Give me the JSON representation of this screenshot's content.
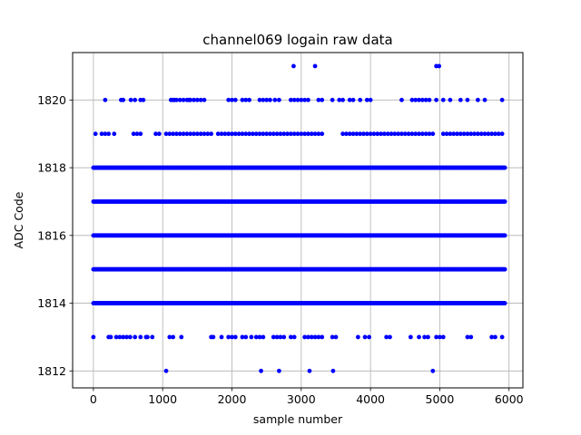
{
  "chart_data": {
    "type": "scatter",
    "title": "channel069 logain raw data",
    "xlabel": "sample number",
    "ylabel": "ADC Code",
    "xlim": [
      -300,
      6200
    ],
    "ylim": [
      1811.5,
      1821.4
    ],
    "xticks": [
      0,
      1000,
      2000,
      3000,
      4000,
      5000,
      6000
    ],
    "xtick_labels": [
      "0",
      "1000",
      "2000",
      "3000",
      "4000",
      "5000",
      "6000"
    ],
    "yticks": [
      1812,
      1814,
      1816,
      1818,
      1820
    ],
    "ytick_labels": [
      "1812",
      "1814",
      "1816",
      "1818",
      "1820"
    ],
    "grid": true,
    "marker_color": "#0000ff",
    "x_range": [
      0,
      5950
    ],
    "series": [
      {
        "values_dense": [
          1814,
          1815,
          1816,
          1817,
          1818
        ],
        "sparse_points": [
          {
            "y": 1812,
            "x": [
              1050,
              2420,
              2680,
              3120,
              3460,
              4900
            ]
          },
          {
            "y": 1821,
            "x": [
              2890,
              3200,
              4950,
              4990
            ]
          },
          {
            "y": 1820,
            "x": [
              170,
              400,
              430,
              540,
              600,
              680,
              720,
              1120,
              1150,
              1170,
              1200,
              1250,
              1300,
              1350,
              1380,
              1400,
              1450,
              1500,
              1550,
              1600,
              1950,
              2000,
              2050,
              2150,
              2200,
              2250,
              2400,
              2450,
              2500,
              2550,
              2620,
              2680,
              2850,
              2900,
              2950,
              3000,
              3050,
              3100,
              3250,
              3300,
              3450,
              3550,
              3600,
              3700,
              3750,
              3850,
              3950,
              4000,
              4450,
              4600,
              4650,
              4700,
              4750,
              4800,
              4850,
              4950,
              5050,
              5150,
              5300,
              5400,
              5550,
              5650,
              5900
            ]
          },
          {
            "y": 1819,
            "x": [
              30,
              120,
              170,
              220,
              300,
              580,
              630,
              680,
              900,
              950,
              1050,
              1100,
              1150,
              1200,
              1250,
              1300,
              1350,
              1400,
              1450,
              1500,
              1550,
              1600,
              1650,
              1700,
              1800,
              1850,
              1900,
              1950,
              2000,
              2050,
              2100,
              2150,
              2200,
              2250,
              2300,
              2350,
              2400,
              2450,
              2500,
              2550,
              2600,
              2650,
              2700,
              2750,
              2800,
              2850,
              2900,
              2950,
              3000,
              3050,
              3100,
              3150,
              3200,
              3250,
              3300,
              3600,
              3650,
              3700,
              3750,
              3800,
              3850,
              3900,
              3950,
              4000,
              4050,
              4100,
              4150,
              4200,
              4250,
              4300,
              4350,
              4400,
              4450,
              4500,
              4550,
              4600,
              4650,
              4700,
              4750,
              4800,
              4850,
              4900,
              5050,
              5100,
              5150,
              5200,
              5250,
              5300,
              5350,
              5400,
              5450,
              5500,
              5550,
              5600,
              5650,
              5700,
              5750,
              5800,
              5850,
              5900
            ]
          },
          {
            "y": 1813,
            "x": [
              0,
              220,
              250,
              330,
              380,
              430,
              480,
              530,
              600,
              680,
              760,
              780,
              850,
              1100,
              1150,
              1270,
              1700,
              1730,
              1850,
              1950,
              2000,
              2050,
              2150,
              2200,
              2280,
              2350,
              2400,
              2450,
              2600,
              2650,
              2700,
              2750,
              2850,
              2900,
              3050,
              3100,
              3150,
              3200,
              3250,
              3300,
              3450,
              3500,
              3820,
              3920,
              3980,
              4230,
              4280,
              4580,
              4700,
              4780,
              4830,
              4950,
              5000,
              5050,
              5400,
              5450,
              5750,
              5800,
              5900
            ]
          }
        ]
      }
    ]
  }
}
